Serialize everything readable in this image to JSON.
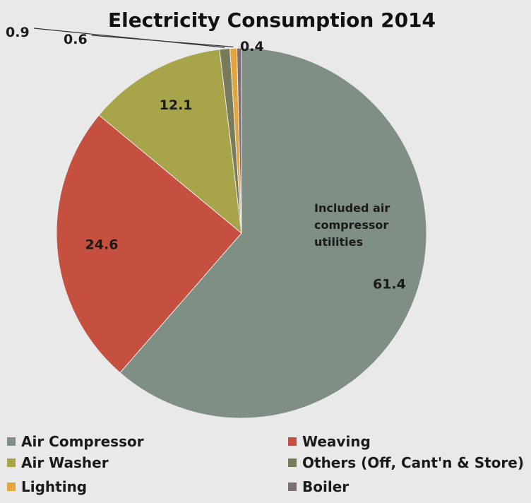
{
  "chart_data": {
    "type": "pie",
    "title": "Electricity Consumption 2014",
    "annotation": [
      "Included air",
      "compressor",
      "utilities"
    ],
    "slices": [
      {
        "name": "Air Compressor",
        "value": 61.4,
        "label": "61.4",
        "color": "#7f8f84"
      },
      {
        "name": "Weaving",
        "value": 24.6,
        "label": "24.6",
        "color": "#c6503f"
      },
      {
        "name": "Air Washer",
        "value": 12.1,
        "label": "12.1",
        "color": "#a8a44a"
      },
      {
        "name": "Others (Off, Cant'n & Store)",
        "value": 0.9,
        "label": "0.9",
        "color": "#777b5a"
      },
      {
        "name": "Lighting",
        "value": 0.6,
        "label": "0.6",
        "color": "#e2a63d"
      },
      {
        "name": "Boiler",
        "value": 0.4,
        "label": "0.4",
        "color": "#7d6e76"
      }
    ],
    "legend_position": "bottom",
    "start_angle_deg": -90,
    "direction": "clockwise"
  }
}
